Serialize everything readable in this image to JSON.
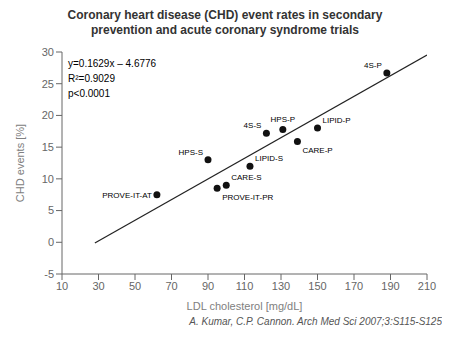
{
  "chart_data": {
    "type": "scatter",
    "title": "Coronary heart disease (CHD) event rates in secondary\nprevention and acute coronary syndrome trials",
    "xlabel": "LDL cholesterol [mg/dL]",
    "ylabel": "CHD events [%]",
    "xlim": [
      10,
      210
    ],
    "ylim": [
      -5,
      30
    ],
    "xticks": [
      10,
      30,
      50,
      70,
      90,
      110,
      130,
      150,
      170,
      190,
      210
    ],
    "yticks": [
      -5,
      0,
      5,
      10,
      15,
      20,
      25,
      30
    ],
    "x": [
      62,
      90,
      95,
      100,
      113,
      122,
      131,
      139,
      150,
      188
    ],
    "values": [
      7.5,
      13.0,
      8.5,
      9.0,
      12.0,
      17.2,
      17.8,
      15.9,
      18.0,
      26.7
    ],
    "labels": [
      "PROVE-IT-AT",
      "HPS-S",
      "PROVE-IT-PR",
      "CARE-S",
      "LIPID-S",
      "4S-S",
      "HPS-P",
      "CARE-P",
      "LIPID-P",
      "4S-P"
    ],
    "color": "#111111",
    "marker": "circle",
    "regression": {
      "type": "line",
      "x": [
        28,
        210
      ],
      "values": [
        -0.1164,
        29.5314
      ],
      "color": "#222222",
      "line_style": "solid"
    },
    "annotations": [
      "y=0.1629x – 4.6776",
      "R²=0.9029",
      "p<0.0001"
    ],
    "citation": "A. Kumar, C.P. Cannon. Arch Med Sci 2007;3:S115-S125",
    "grid": false
  }
}
